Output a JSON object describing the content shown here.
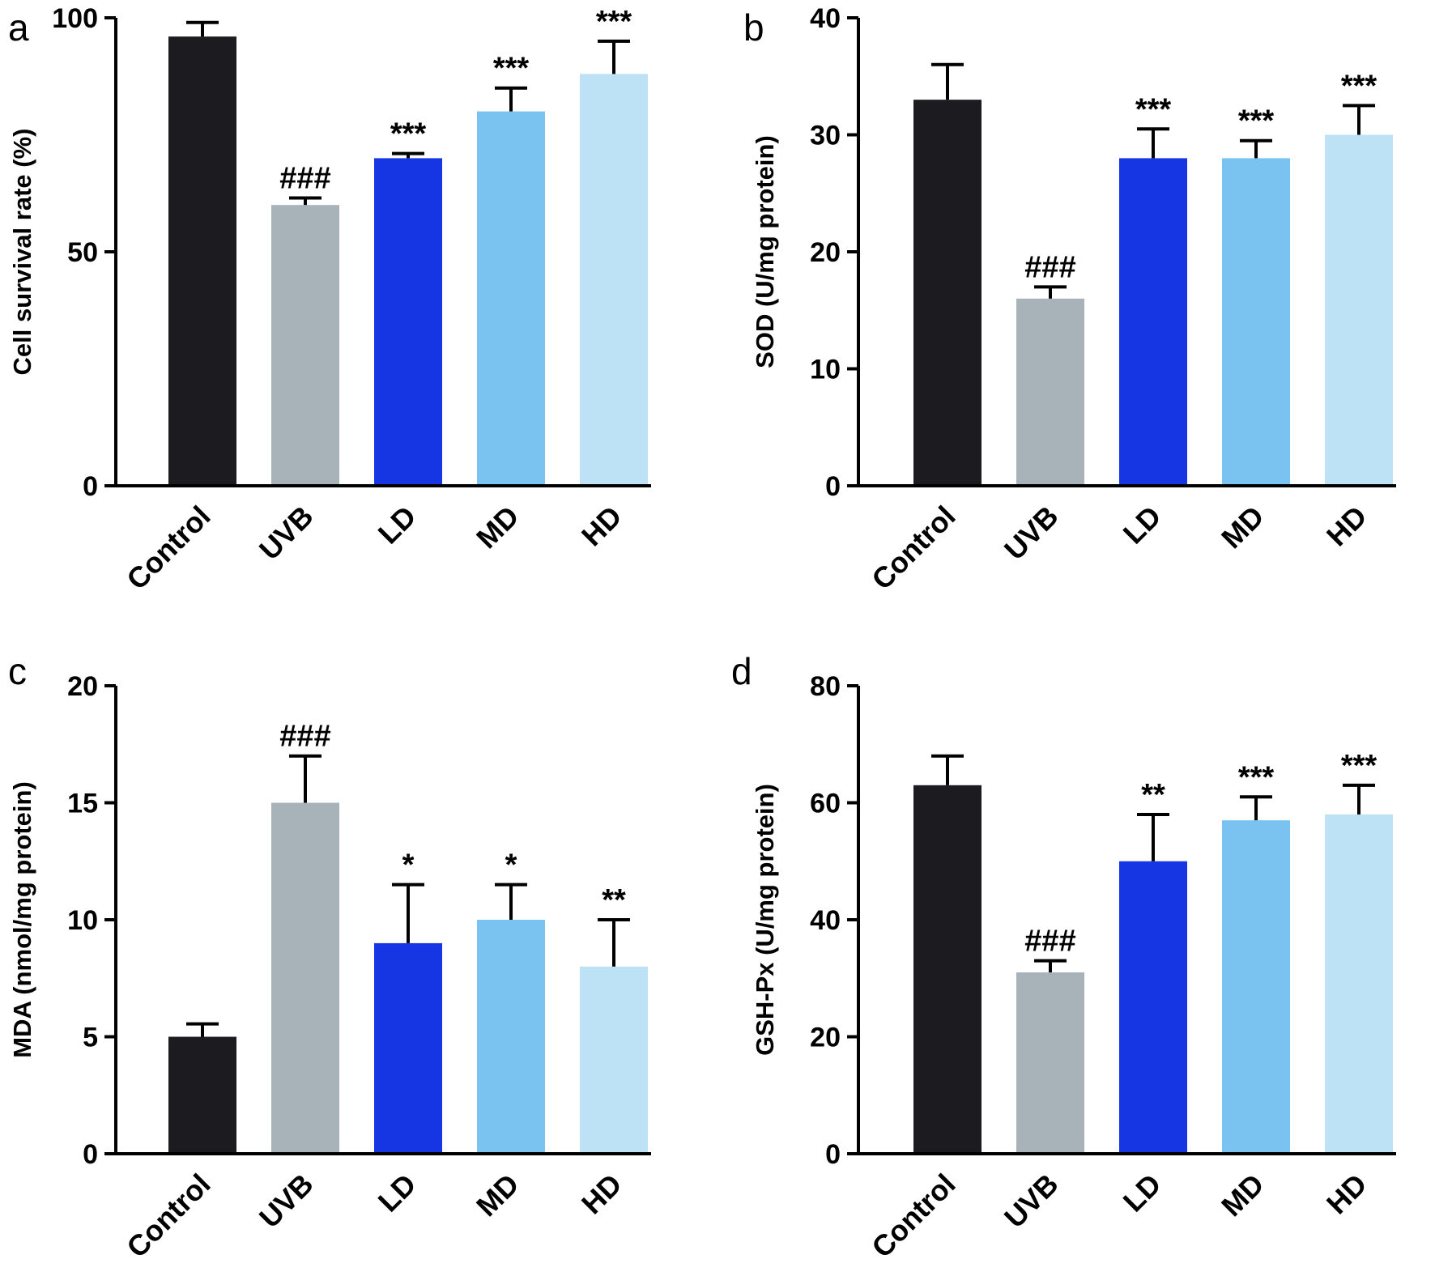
{
  "colors": {
    "Control": "#1c1b1f",
    "UVB": "#a7b2b9",
    "LD": "#1636e4",
    "MD": "#7ac3f1",
    "HD": "#bde2f6",
    "axis": "#000000"
  },
  "chart_data": [
    {
      "panel": "a",
      "type": "bar",
      "categories": [
        "Control",
        "UVB",
        "LD",
        "MD",
        "HD"
      ],
      "values": [
        96,
        60,
        70,
        80,
        88
      ],
      "errors": [
        3,
        1.5,
        1,
        5,
        7
      ],
      "significance": [
        "",
        "###",
        "***",
        "***",
        "***"
      ],
      "ylabel": "Cell survival rate (%)",
      "ylim": [
        0,
        100
      ],
      "yticks": [
        "0",
        "50",
        "100"
      ]
    },
    {
      "panel": "b",
      "type": "bar",
      "categories": [
        "Control",
        "UVB",
        "LD",
        "MD",
        "HD"
      ],
      "values": [
        33,
        16,
        28,
        28,
        30
      ],
      "errors": [
        3,
        1,
        2.5,
        1.5,
        2.5
      ],
      "significance": [
        "",
        "###",
        "***",
        "***",
        "***"
      ],
      "ylabel": "SOD (U/mg protein)",
      "ylim": [
        0,
        40
      ],
      "yticks": [
        "0",
        "10",
        "20",
        "30",
        "40"
      ]
    },
    {
      "panel": "c",
      "type": "bar",
      "categories": [
        "Control",
        "UVB",
        "LD",
        "MD",
        "HD"
      ],
      "values": [
        5,
        15,
        9,
        10,
        8
      ],
      "errors": [
        0.55,
        2,
        2.5,
        1.5,
        2
      ],
      "significance": [
        "",
        "###",
        "*",
        "*",
        "**"
      ],
      "ylabel": "MDA (nmol/mg protein)",
      "ylim": [
        0,
        20
      ],
      "yticks": [
        "0",
        "5",
        "10",
        "15",
        "20"
      ]
    },
    {
      "panel": "d",
      "type": "bar",
      "categories": [
        "Control",
        "UVB",
        "LD",
        "MD",
        "HD"
      ],
      "values": [
        63,
        31,
        50,
        57,
        58
      ],
      "errors": [
        5,
        2,
        8,
        4,
        5
      ],
      "significance": [
        "",
        "###",
        "**",
        "***",
        "***"
      ],
      "ylabel": "GSH-Px (U/mg protein)",
      "ylim": [
        0,
        80
      ],
      "yticks": [
        "0",
        "20",
        "40",
        "60",
        "80"
      ]
    }
  ]
}
